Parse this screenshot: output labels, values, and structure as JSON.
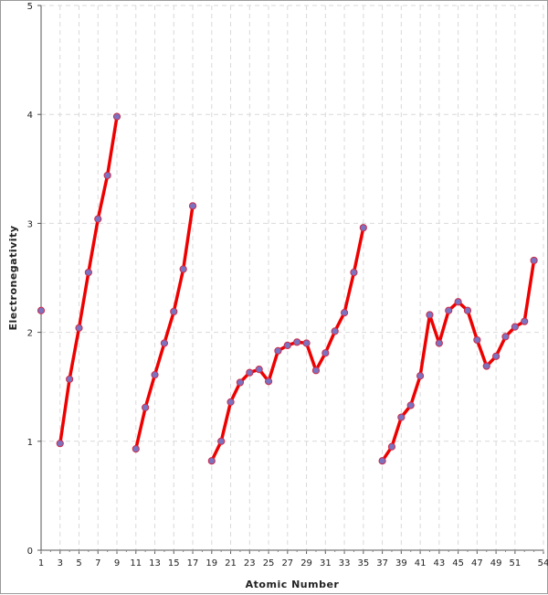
{
  "chart_data": {
    "type": "line",
    "xlabel": "Atomic Number",
    "ylabel": "Electronegativity",
    "xlim": [
      1,
      54
    ],
    "ylim": [
      0,
      5
    ],
    "grid": true,
    "x_ticks": [
      1,
      3,
      5,
      7,
      9,
      11,
      13,
      15,
      17,
      19,
      21,
      23,
      25,
      27,
      29,
      31,
      33,
      35,
      37,
      39,
      41,
      43,
      45,
      47,
      49,
      51,
      54
    ],
    "y_ticks": [
      0,
      1,
      2,
      3,
      4,
      5
    ],
    "line_color": "#ee0000",
    "marker_color": "#7b72c0",
    "segments": [
      {
        "x": [
          1
        ],
        "y": [
          2.2
        ]
      },
      {
        "x": [
          3,
          4,
          5,
          6,
          7,
          8,
          9
        ],
        "y": [
          0.98,
          1.57,
          2.04,
          2.55,
          3.04,
          3.44,
          3.98
        ]
      },
      {
        "x": [
          11,
          12,
          13,
          14,
          15,
          16,
          17
        ],
        "y": [
          0.93,
          1.31,
          1.61,
          1.9,
          2.19,
          2.58,
          3.16
        ]
      },
      {
        "x": [
          19,
          20,
          21,
          22,
          23,
          24,
          25,
          26,
          27,
          28,
          29,
          30,
          31,
          32,
          33,
          34,
          35
        ],
        "y": [
          0.82,
          1.0,
          1.36,
          1.54,
          1.63,
          1.66,
          1.55,
          1.83,
          1.88,
          1.91,
          1.9,
          1.65,
          1.81,
          2.01,
          2.18,
          2.55,
          2.96
        ]
      },
      {
        "x": [
          37,
          38,
          39,
          40,
          41,
          42,
          43,
          44,
          45,
          46,
          47,
          48,
          49,
          50,
          51,
          52,
          53
        ],
        "y": [
          0.82,
          0.95,
          1.22,
          1.33,
          1.6,
          2.16,
          1.9,
          2.2,
          2.28,
          2.2,
          1.93,
          1.69,
          1.78,
          1.96,
          2.05,
          2.1,
          2.66
        ]
      }
    ]
  }
}
